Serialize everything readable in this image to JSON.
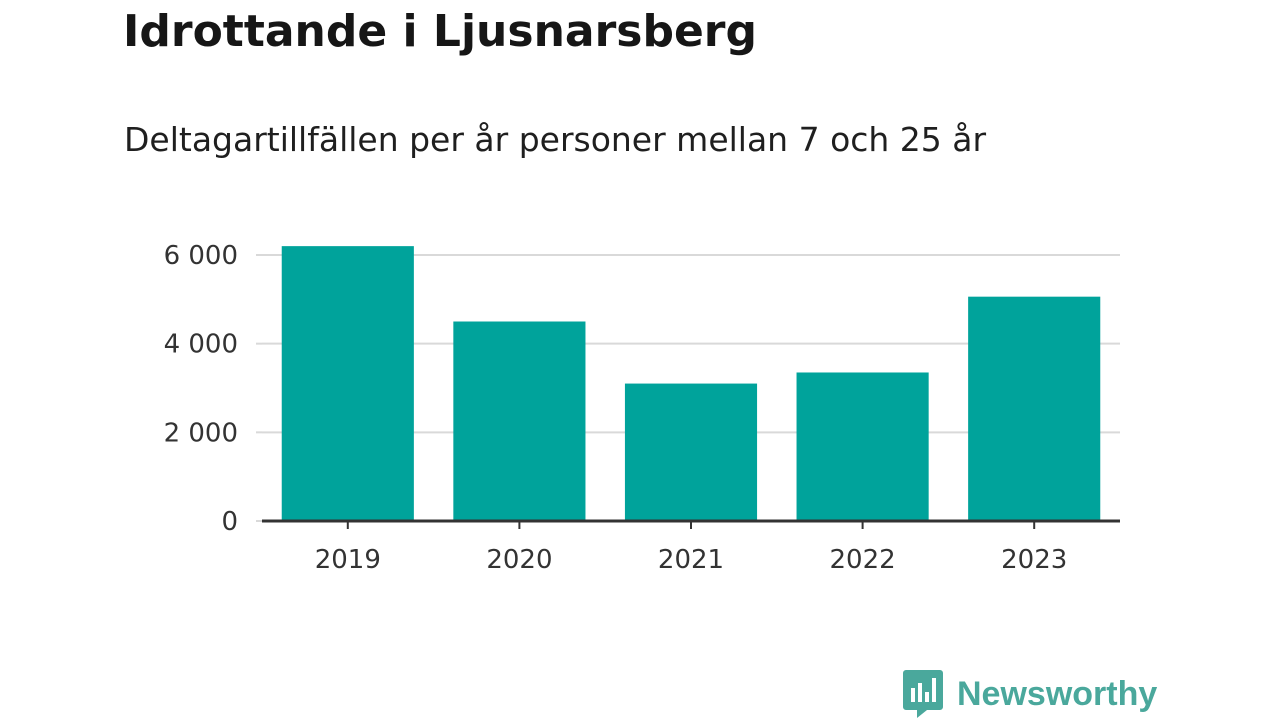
{
  "title": "Idrottande i Ljusnarsberg",
  "subtitle": "Deltagartillfällen per år personer mellan 7 och 25 år",
  "brand": {
    "name": "Newsworthy",
    "icon": "bar-chart-speech-bubble-icon"
  },
  "colors": {
    "bar": "#00a39b",
    "grid": "#d9d9d9",
    "axis": "#333333",
    "brand": "#4aa89c"
  },
  "chart_data": {
    "type": "bar",
    "title": "Idrottande i Ljusnarsberg",
    "subtitle": "Deltagartillfällen per år personer mellan 7 och 25 år",
    "xlabel": "",
    "ylabel": "",
    "categories": [
      "2019",
      "2020",
      "2021",
      "2022",
      "2023"
    ],
    "values": [
      6200,
      4500,
      3100,
      3350,
      5060
    ],
    "ylim": [
      0,
      6000
    ],
    "yticks": [
      0,
      2000,
      4000,
      6000
    ],
    "ytick_labels": [
      "0",
      "2 000",
      "4 000",
      "6 000"
    ],
    "grid": true,
    "legend": "none"
  }
}
